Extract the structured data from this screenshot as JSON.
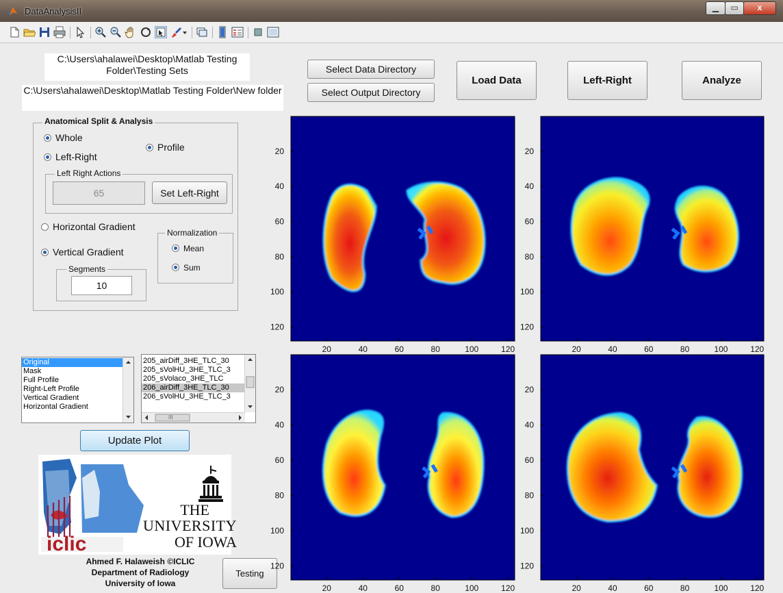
{
  "window": {
    "title": "DataAnalysisII",
    "minimize": "▁",
    "maximize": "▭",
    "close": "x"
  },
  "toolbar": [
    "new-file",
    "open-file",
    "save-file",
    "print",
    "separator",
    "pointer",
    "separator",
    "zoom-in",
    "zoom-out",
    "pan",
    "rotate-3d",
    "data-cursor",
    "brush",
    "dropdown",
    "separator",
    "link-plot",
    "separator",
    "colorbar",
    "legend",
    "separator",
    "hide-plot-tools",
    "show-plot-tools"
  ],
  "paths": {
    "data_dir": "C:\\Users\\ahalawei\\Desktop\\Matlab Testing Folder\\Testing Sets",
    "output_dir": "C:\\Users\\ahalawei\\Desktop\\Matlab Testing Folder\\New folder"
  },
  "buttons": {
    "select_data": "Select Data Directory",
    "select_output": "Select Output Directory",
    "load_data": "Load Data",
    "left_right": "Left-Right",
    "analyze": "Analyze",
    "set_left_right": "Set Left-Right",
    "update_plot": "Update Plot",
    "testing": "Testing"
  },
  "anatomical": {
    "legend": "Anatomical Split & Analysis",
    "whole": "Whole",
    "left_right": "Left-Right",
    "profile": "Profile",
    "lr_actions_legend": "Left Right Actions",
    "lr_value": "65",
    "horizontal_gradient": "Horizontal Gradient",
    "vertical_gradient": "Vertical Gradient",
    "segments_legend": "Segments",
    "segments_value": "10",
    "normalization_legend": "Normalization",
    "mean": "Mean",
    "sum": "Sum"
  },
  "plot_types": [
    "Original",
    "Mask",
    "Full Profile",
    "Right-Left Profile",
    "Vertical Gradient",
    "Horizontal Gradient"
  ],
  "files": [
    "205_airDiff_3HE_TLC_30",
    "205_sVolHU_3HE_TLC_3",
    "205_sVolaco_3HE_TLC",
    "206_airDiff_3HE_TLC_30",
    "206_sVolHU_3HE_TLC_3"
  ],
  "hscroll_thumb": "III",
  "logo": {
    "iclic": "iclic",
    "university": [
      "THE",
      "UNIVERSITY",
      "OF IOWA"
    ]
  },
  "credit": [
    "Ahmed F. Halaweish ©ICLIC",
    "Department of Radiology",
    "University of Iowa"
  ],
  "ticks": {
    "x": [
      "20",
      "40",
      "60",
      "80",
      "100",
      "120"
    ],
    "y": [
      "20",
      "40",
      "60",
      "80",
      "100",
      "120"
    ]
  },
  "colors": {
    "background": "#00008f",
    "accent": "#3399ff"
  }
}
